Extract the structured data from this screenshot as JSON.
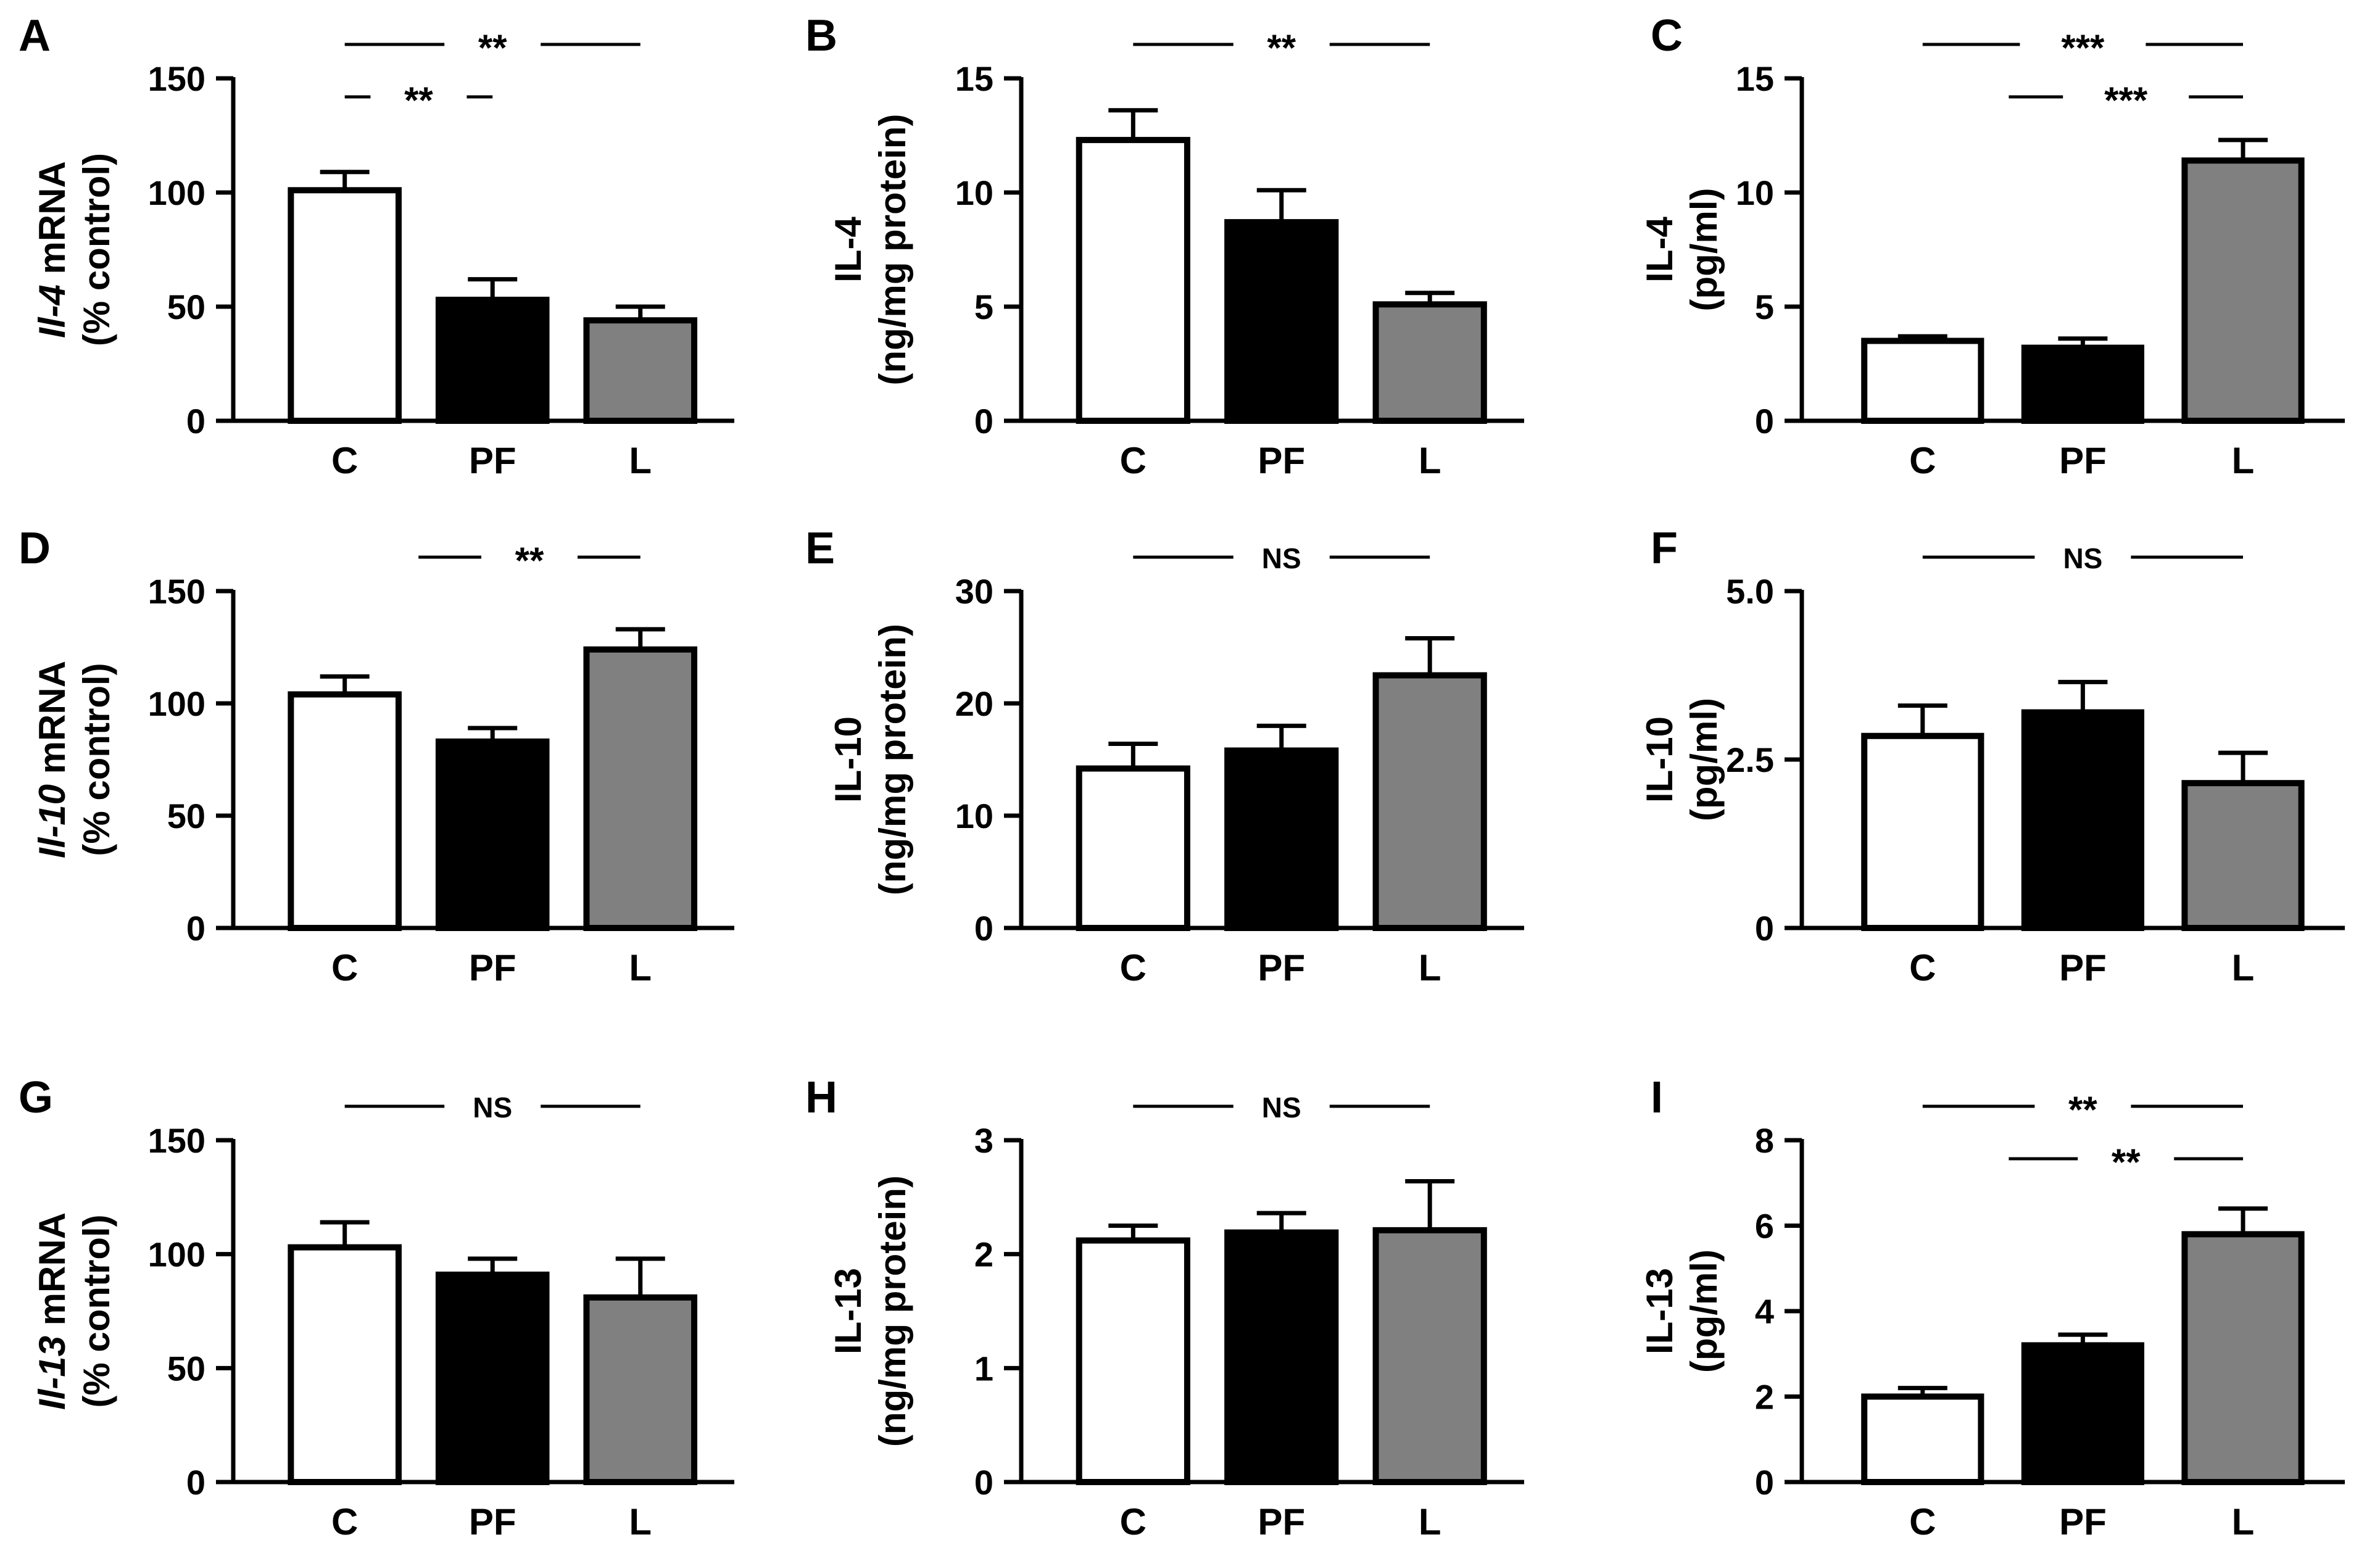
{
  "colors": {
    "C": "#ffffff",
    "PF": "#000000",
    "L": "#808080",
    "stroke": "#000000"
  },
  "chart_data": [
    {
      "letter": "A",
      "type": "bar",
      "ylabel_italic": "Il-4",
      "ylabel_rest": " mRNA",
      "ylabel_line2": "(% control)",
      "categories": [
        "C",
        "PF",
        "L"
      ],
      "values": [
        101,
        53,
        44
      ],
      "errors": [
        8,
        9,
        6
      ],
      "ylim": [
        0,
        150
      ],
      "yticks": [
        0,
        50,
        100,
        150
      ],
      "ytick_labels": [
        "0",
        "50",
        "100",
        "150"
      ],
      "sig": [
        {
          "from": 0,
          "to": 2,
          "label": "**",
          "level": 0
        },
        {
          "from": 0,
          "to": 1,
          "label": "**",
          "level": 1
        }
      ]
    },
    {
      "letter": "B",
      "type": "bar",
      "ylabel_italic": "",
      "ylabel_rest": "IL-4",
      "ylabel_line2": "(ng/mg protein)",
      "categories": [
        "C",
        "PF",
        "L"
      ],
      "values": [
        12.3,
        8.7,
        5.1
      ],
      "errors": [
        1.3,
        1.4,
        0.5
      ],
      "ylim": [
        0,
        15
      ],
      "yticks": [
        0,
        5,
        10,
        15
      ],
      "ytick_labels": [
        "0",
        "5",
        "10",
        "15"
      ],
      "sig": [
        {
          "from": 0,
          "to": 2,
          "label": "**",
          "level": 0
        }
      ]
    },
    {
      "letter": "C",
      "type": "bar",
      "ylabel_italic": "",
      "ylabel_rest": "IL-4",
      "ylabel_line2": "(pg/ml)",
      "categories": [
        "C",
        "PF",
        "L"
      ],
      "values": [
        3.5,
        3.2,
        11.4
      ],
      "errors": [
        0.2,
        0.4,
        0.9
      ],
      "ylim": [
        0,
        15
      ],
      "yticks": [
        0,
        5,
        10,
        15
      ],
      "ytick_labels": [
        "0",
        "5",
        "10",
        "15"
      ],
      "sig": [
        {
          "from": 0,
          "to": 2,
          "label": "***",
          "level": 0
        },
        {
          "from": 1,
          "to": 2,
          "label": "***",
          "level": 1
        }
      ]
    },
    {
      "letter": "D",
      "type": "bar",
      "ylabel_italic": "Il-10",
      "ylabel_rest": " mRNA",
      "ylabel_line2": "(% control)",
      "categories": [
        "C",
        "PF",
        "L"
      ],
      "values": [
        104,
        83,
        124
      ],
      "errors": [
        8,
        6,
        9
      ],
      "ylim": [
        0,
        150
      ],
      "yticks": [
        0,
        50,
        100,
        150
      ],
      "ytick_labels": [
        "0",
        "50",
        "100",
        "150"
      ],
      "sig": [
        {
          "from": 1,
          "to": 2,
          "label": "**",
          "level": 0
        }
      ]
    },
    {
      "letter": "E",
      "type": "bar",
      "ylabel_italic": "",
      "ylabel_rest": "IL-10",
      "ylabel_line2": "(ng/mg protein)",
      "categories": [
        "C",
        "PF",
        "L"
      ],
      "values": [
        14.2,
        15.8,
        22.5
      ],
      "errors": [
        2.2,
        2.2,
        3.3
      ],
      "ylim": [
        0,
        30
      ],
      "yticks": [
        0,
        10,
        20,
        30
      ],
      "ytick_labels": [
        "0",
        "10",
        "20",
        "30"
      ],
      "sig": [
        {
          "from": 0,
          "to": 2,
          "label": "NS",
          "level": 0
        }
      ]
    },
    {
      "letter": "F",
      "type": "bar",
      "ylabel_italic": "",
      "ylabel_rest": "IL-10",
      "ylabel_line2": "(pg/ml)",
      "categories": [
        "C",
        "PF",
        "L"
      ],
      "values": [
        2.85,
        3.2,
        2.15
      ],
      "errors": [
        0.45,
        0.45,
        0.45
      ],
      "ylim": [
        0,
        5
      ],
      "yticks": [
        0,
        2.5,
        5
      ],
      "ytick_labels": [
        "0",
        "2.5",
        "5.0"
      ],
      "sig": [
        {
          "from": 0,
          "to": 2,
          "label": "NS",
          "level": 0
        }
      ]
    },
    {
      "letter": "G",
      "type": "bar",
      "ylabel_italic": "Il-13",
      "ylabel_rest": " mRNA",
      "ylabel_line2": "(% control)",
      "categories": [
        "C",
        "PF",
        "L"
      ],
      "values": [
        103,
        91,
        81
      ],
      "errors": [
        11,
        7,
        17
      ],
      "ylim": [
        0,
        150
      ],
      "yticks": [
        0,
        50,
        100,
        150
      ],
      "ytick_labels": [
        "0",
        "50",
        "100",
        "150"
      ],
      "sig": [
        {
          "from": 0,
          "to": 2,
          "label": "NS",
          "level": 0
        }
      ]
    },
    {
      "letter": "H",
      "type": "bar",
      "ylabel_italic": "",
      "ylabel_rest": "IL-13",
      "ylabel_line2": "(ng/mg protein)",
      "categories": [
        "C",
        "PF",
        "L"
      ],
      "values": [
        2.12,
        2.19,
        2.21
      ],
      "errors": [
        0.13,
        0.17,
        0.43
      ],
      "ylim": [
        0,
        3
      ],
      "yticks": [
        0,
        1,
        2,
        3
      ],
      "ytick_labels": [
        "0",
        "1",
        "2",
        "3"
      ],
      "sig": [
        {
          "from": 0,
          "to": 2,
          "label": "NS",
          "level": 0
        }
      ]
    },
    {
      "letter": "I",
      "type": "bar",
      "ylabel_italic": "",
      "ylabel_rest": "IL-13",
      "ylabel_line2": "(pg/ml)",
      "categories": [
        "C",
        "PF",
        "L"
      ],
      "values": [
        2.0,
        3.2,
        5.8
      ],
      "errors": [
        0.2,
        0.25,
        0.6
      ],
      "ylim": [
        0,
        8
      ],
      "yticks": [
        0,
        2,
        4,
        6,
        8
      ],
      "ytick_labels": [
        "0",
        "2",
        "4",
        "6",
        "8"
      ],
      "sig": [
        {
          "from": 0,
          "to": 2,
          "label": "**",
          "level": 0
        },
        {
          "from": 1,
          "to": 2,
          "label": "**",
          "level": 1
        }
      ]
    }
  ]
}
